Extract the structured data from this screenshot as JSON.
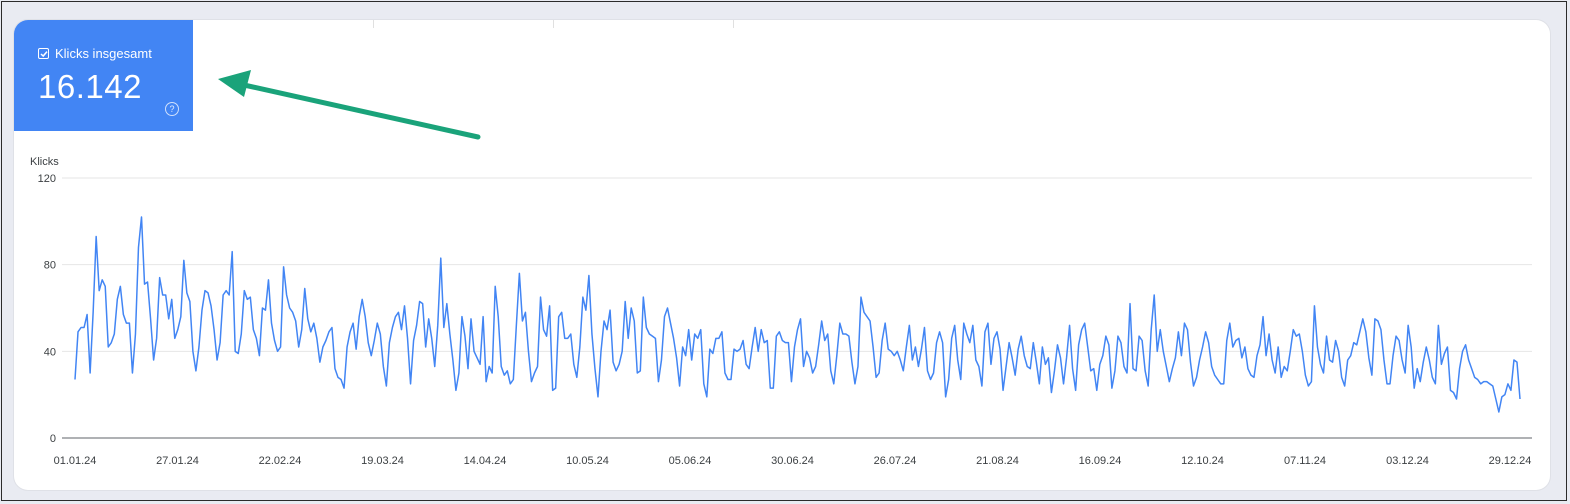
{
  "metric": {
    "label": "Klicks insgesamt",
    "value": "16.142",
    "color": "#4285f4",
    "checked": true,
    "icon": "help-icon"
  },
  "annotation": {
    "type": "arrow",
    "color": "#1aa37a",
    "points_to": "metric"
  },
  "chart_data": {
    "type": "line",
    "title": "",
    "ylabel": "Klicks",
    "xlabel": "",
    "ylim": [
      0,
      120
    ],
    "yticks": [
      0,
      40,
      80,
      120
    ],
    "grid": true,
    "color": "#4285f4",
    "xtick_labels": [
      "01.01.24",
      "27.01.24",
      "22.02.24",
      "19.03.24",
      "14.04.24",
      "10.05.24",
      "05.06.24",
      "30.06.24",
      "26.07.24",
      "21.08.24",
      "16.09.24",
      "12.10.24",
      "07.11.24",
      "03.12.24",
      "29.12.24"
    ],
    "x_start": "2024-01-01",
    "x_end": "2024-12-31",
    "series": [
      {
        "values": [
          27,
          49,
          51,
          51,
          57,
          30,
          58,
          93,
          68,
          73,
          70,
          42,
          44,
          48,
          64,
          70,
          57,
          53,
          53,
          30,
          48,
          88,
          102,
          71,
          72,
          55,
          36,
          46,
          74,
          66,
          66,
          55,
          64,
          46,
          50,
          56,
          82,
          67,
          63,
          40,
          31,
          42,
          59,
          68,
          67,
          61,
          50,
          36,
          44,
          66,
          68,
          66,
          86,
          40,
          39,
          48,
          68,
          64,
          65,
          50,
          46,
          38,
          60,
          59,
          73,
          53,
          45,
          40,
          42,
          79,
          66,
          60,
          58,
          54,
          42,
          50,
          69,
          55,
          49,
          53,
          46,
          35,
          42,
          45,
          49,
          51,
          32,
          28,
          27,
          23,
          42,
          49,
          53,
          41,
          56,
          64,
          56,
          44,
          38,
          45,
          53,
          48,
          33,
          24,
          44,
          51,
          56,
          58,
          50,
          61,
          46,
          25,
          45,
          52,
          63,
          62,
          42,
          55,
          46,
          33,
          52,
          83,
          51,
          62,
          48,
          36,
          22,
          30,
          56,
          47,
          32,
          55,
          40,
          37,
          34,
          56,
          26,
          33,
          30,
          70,
          56,
          33,
          29,
          31,
          25,
          27,
          52,
          76,
          54,
          58,
          40,
          26,
          30,
          33,
          65,
          50,
          47,
          61,
          22,
          23,
          56,
          58,
          46,
          46,
          48,
          34,
          28,
          42,
          65,
          59,
          75,
          48,
          32,
          19,
          40,
          54,
          50,
          59,
          35,
          31,
          34,
          40,
          63,
          46,
          60,
          54,
          30,
          31,
          65,
          51,
          48,
          47,
          46,
          26,
          36,
          56,
          60,
          53,
          46,
          37,
          24,
          42,
          38,
          50,
          36,
          48,
          46,
          50,
          25,
          19,
          41,
          39,
          46,
          46,
          49,
          30,
          27,
          27,
          41,
          40,
          41,
          45,
          34,
          32,
          42,
          51,
          40,
          50,
          44,
          45,
          23,
          23,
          47,
          49,
          45,
          44,
          44,
          26,
          42,
          50,
          55,
          33,
          40,
          37,
          30,
          33,
          43,
          54,
          45,
          48,
          31,
          25,
          38,
          53,
          48,
          48,
          47,
          35,
          25,
          33,
          65,
          58,
          56,
          54,
          42,
          28,
          30,
          45,
          53,
          41,
          40,
          38,
          40,
          36,
          31,
          42,
          52,
          36,
          42,
          33,
          41,
          51,
          31,
          27,
          30,
          44,
          49,
          44,
          19,
          27,
          46,
          52,
          36,
          27,
          53,
          48,
          44,
          52,
          36,
          33,
          24,
          49,
          53,
          34,
          46,
          49,
          41,
          22,
          33,
          44,
          37,
          29,
          41,
          47,
          38,
          33,
          32,
          44,
          35,
          25,
          42,
          34,
          37,
          21,
          31,
          43,
          37,
          25,
          37,
          52,
          32,
          22,
          43,
          50,
          53,
          42,
          31,
          32,
          22,
          34,
          38,
          47,
          43,
          23,
          31,
          47,
          44,
          33,
          30,
          62,
          32,
          31,
          47,
          45,
          31,
          24,
          50,
          66,
          40,
          50,
          40,
          33,
          26,
          32,
          37,
          49,
          38,
          53,
          50,
          35,
          24,
          28,
          36,
          42,
          49,
          44,
          33,
          29,
          27,
          25,
          25,
          45,
          53,
          42,
          45,
          46,
          37,
          42,
          32,
          29,
          28,
          38,
          43,
          56,
          38,
          48,
          36,
          30,
          42,
          28,
          33,
          31,
          40,
          50,
          47,
          48,
          40,
          29,
          24,
          26,
          61,
          42,
          34,
          30,
          47,
          36,
          35,
          45,
          40,
          28,
          24,
          36,
          38,
          44,
          43,
          49,
          55,
          49,
          37,
          29,
          55,
          54,
          50,
          36,
          25,
          25,
          38,
          47,
          45,
          36,
          30,
          52,
          42,
          23,
          32,
          26,
          35,
          42,
          36,
          28,
          25,
          52,
          34,
          39,
          42,
          22,
          21,
          18,
          32,
          40,
          43,
          36,
          32,
          28,
          27,
          25,
          26,
          26,
          25,
          24,
          18,
          12,
          19,
          20,
          25,
          22,
          36,
          35,
          18
        ]
      }
    ]
  }
}
